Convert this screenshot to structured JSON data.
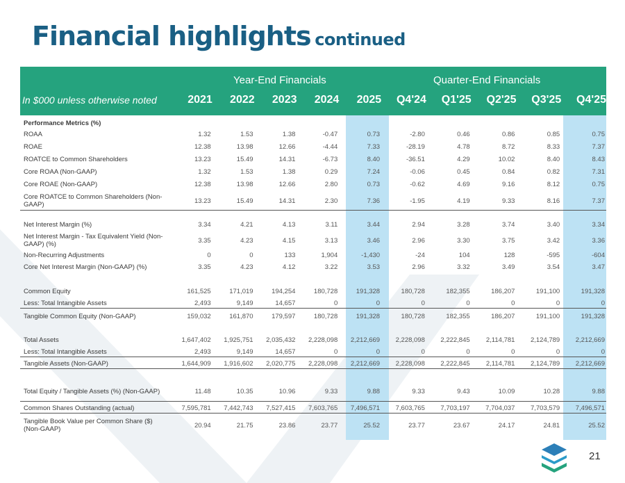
{
  "title": {
    "main": "Financial highlights",
    "sub": "continued"
  },
  "header": {
    "year_end_group": "Year-End Financials",
    "quarter_end_group": "Quarter-End Financials",
    "note": "In $000 unless otherwise noted",
    "years": [
      "2021",
      "2022",
      "2023",
      "2024",
      "2025"
    ],
    "quarters": [
      "Q4'24",
      "Q1'25",
      "Q2'25",
      "Q3'25",
      "Q4'25"
    ]
  },
  "rows": [
    {
      "label": "Performance Metrics (%)",
      "values": [
        "",
        "",
        "",
        "",
        "",
        "",
        "",
        "",
        "",
        ""
      ]
    },
    {
      "label": "ROAA",
      "values": [
        "1.32",
        "1.53",
        "1.38",
        "-0.47",
        "0.73",
        "-2.80",
        "0.46",
        "0.86",
        "0.85",
        "0.75"
      ]
    },
    {
      "label": "ROAE",
      "values": [
        "12.38",
        "13.98",
        "12.66",
        "-4.44",
        "7.33",
        "-28.19",
        "4.78",
        "8.72",
        "8.33",
        "7.37"
      ]
    },
    {
      "label": "ROATCE to Common Shareholders",
      "values": [
        "13.23",
        "15.49",
        "14.31",
        "-6.73",
        "8.40",
        "-36.51",
        "4.29",
        "10.02",
        "8.40",
        "8.43"
      ]
    },
    {
      "label": "Core ROAA (Non-GAAP)",
      "values": [
        "1.32",
        "1.53",
        "1.38",
        "0.29",
        "7.24",
        "-0.06",
        "0.45",
        "0.84",
        "0.82",
        "7.31"
      ]
    },
    {
      "label": "Core ROAE (Non-GAAP)",
      "values": [
        "12.38",
        "13.98",
        "12.66",
        "2.80",
        "0.73",
        "-0.62",
        "4.69",
        "9.16",
        "8.12",
        "0.75"
      ]
    },
    {
      "label": "Core ROATCE to Common Shareholders (Non-GAAP)",
      "values": [
        "13.23",
        "15.49",
        "14.31",
        "2.30",
        "7.36",
        "-1.95",
        "4.19",
        "9.33",
        "8.16",
        "7.37"
      ]
    },
    {
      "label": "Net Interest Margin (%)",
      "values": [
        "3.34",
        "4.21",
        "4.13",
        "3.11",
        "3.44",
        "2.94",
        "3.28",
        "3.74",
        "3.40",
        "3.34"
      ]
    },
    {
      "label": "Net Interest Margin - Tax Equivalent Yield (Non-GAAP) (%)",
      "values": [
        "3.35",
        "4.23",
        "4.15",
        "3.13",
        "3.46",
        "2.96",
        "3.30",
        "3.75",
        "3.42",
        "3.36"
      ]
    },
    {
      "label": "Non-Recurring Adjustments",
      "values": [
        "0",
        "0",
        "133",
        "1,904",
        "-1,430",
        "-24",
        "104",
        "128",
        "-595",
        "-604"
      ]
    },
    {
      "label": "Core Net Interest Margin (Non-GAAP) (%)",
      "values": [
        "3.35",
        "4.23",
        "4.12",
        "3.22",
        "3.53",
        "2.96",
        "3.32",
        "3.49",
        "3.54",
        "3.47"
      ]
    },
    {
      "label": "Common Equity",
      "values": [
        "161,525",
        "171,019",
        "194,254",
        "180,728",
        "191,328",
        "180,728",
        "182,355",
        "186,207",
        "191,100",
        "191,328"
      ]
    },
    {
      "label": "Less: Total Intangible Assets",
      "values": [
        "2,493",
        "9,149",
        "14,657",
        "0",
        "0",
        "0",
        "0",
        "0",
        "0",
        "0"
      ]
    },
    {
      "label": "Tangible Common Equity (Non-GAAP)",
      "values": [
        "159,032",
        "161,870",
        "179,597",
        "180,728",
        "191,328",
        "180,728",
        "182,355",
        "186,207",
        "191,100",
        "191,328"
      ]
    },
    {
      "label": "Total Assets",
      "values": [
        "1,647,402",
        "1,925,751",
        "2,035,432",
        "2,228,098",
        "2,212,669",
        "2,228,098",
        "2,222,845",
        "2,114,781",
        "2,124,789",
        "2,212,669"
      ]
    },
    {
      "label": "Less: Total Intangible Assets",
      "values": [
        "2,493",
        "9,149",
        "14,657",
        "0",
        "0",
        "0",
        "0",
        "0",
        "0",
        "0"
      ]
    },
    {
      "label": "Tangible Assets (Non-GAAP)",
      "values": [
        "1,644,909",
        "1,916,602",
        "2,020,775",
        "2,228,098",
        "2,212,669",
        "2,228,098",
        "2,222,845",
        "2,114,781",
        "2,124,789",
        "2,212,669"
      ]
    },
    {
      "label": "Total Equity / Tangible Assets (%) (Non-GAAP)",
      "values": [
        "11.48",
        "10.35",
        "10.96",
        "9.33",
        "9.88",
        "9.33",
        "9.43",
        "10.09",
        "10.28",
        "9.88"
      ]
    },
    {
      "label": "Common Shares Outstanding (actual)",
      "values": [
        "7,595,781",
        "7,442,743",
        "7,527,415",
        "7,603,765",
        "7,496,571",
        "7,603,765",
        "7,703,197",
        "7,704,037",
        "7,703,579",
        "7,496,571"
      ]
    },
    {
      "label": "Tangible Book Value per Common Share ($) (Non-GAAP)",
      "values": [
        "20.94",
        "21.75",
        "23.86",
        "23.77",
        "25.52",
        "23.77",
        "23.67",
        "24.17",
        "24.81",
        "25.52"
      ]
    }
  ],
  "page_number": "21",
  "colors": {
    "title": "#1a5f84",
    "header_bg": "#25a37e",
    "highlight": "#bde2f4",
    "chevron": "#eef2f5"
  },
  "logo": {
    "icon": "stacked-layers-logo-icon"
  }
}
